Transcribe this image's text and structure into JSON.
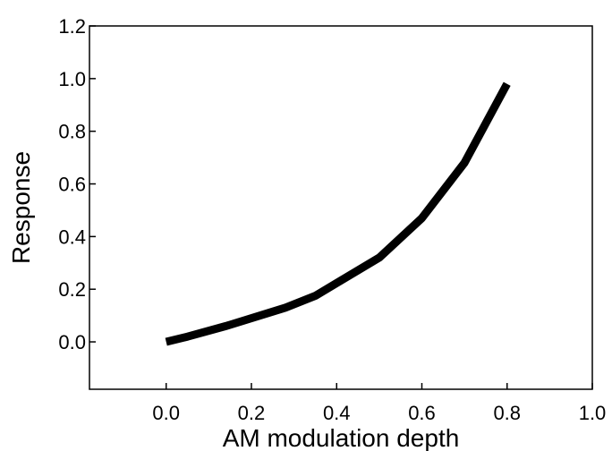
{
  "chart_data": {
    "type": "line",
    "title": "",
    "xlabel": "AM modulation depth",
    "ylabel": "Response",
    "xlim": [
      -0.18,
      1.0
    ],
    "ylim": [
      -0.18,
      1.2
    ],
    "xticks": [
      0.0,
      0.2,
      0.4,
      0.6,
      0.8,
      1.0
    ],
    "xtick_labels": [
      "0.0",
      "0.2",
      "0.4",
      "0.6",
      "0.8",
      "1.0"
    ],
    "yticks": [
      0.0,
      0.2,
      0.4,
      0.6,
      0.8,
      1.0,
      1.2
    ],
    "ytick_labels": [
      "0.0",
      "0.2",
      "0.4",
      "0.6",
      "0.8",
      "1.0",
      "1.2"
    ],
    "grid": false,
    "legend": "none",
    "series": [
      {
        "x": [
          0.0,
          0.05,
          0.14,
          0.28,
          0.35,
          0.5,
          0.6,
          0.7,
          0.8
        ],
        "y": [
          0.0,
          0.02,
          0.06,
          0.13,
          0.175,
          0.32,
          0.47,
          0.68,
          0.98
        ],
        "color": "#000000"
      }
    ]
  }
}
